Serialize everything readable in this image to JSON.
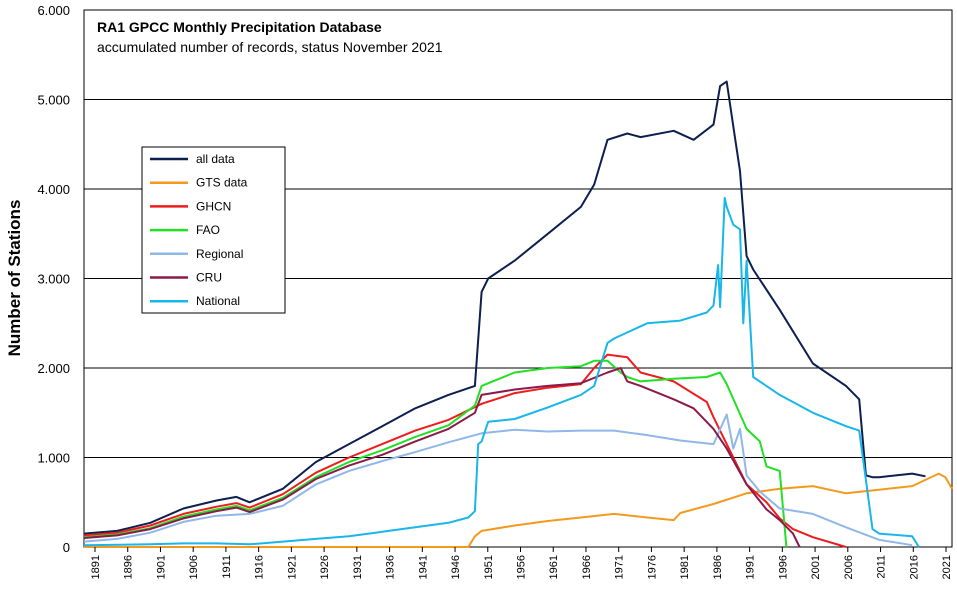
{
  "chart_data": {
    "type": "line",
    "title": "RA1  GPCC Monthly  Precipitation Database",
    "subtitle": "accumulated  number  of records,  status November  2021",
    "xlabel": "",
    "ylabel": "Number of Stations",
    "xlim": [
      1891,
      2022
    ],
    "ylim": [
      0,
      6000
    ],
    "y_ticks": [
      0,
      1000,
      2000,
      3000,
      4000,
      5000,
      6000
    ],
    "y_tick_labels": [
      "0",
      "1.000",
      "2.000",
      "3.000",
      "4.000",
      "5.000",
      "6.000"
    ],
    "x_tick_labels": [
      "1891",
      "1896",
      "1901",
      "1906",
      "1911",
      "1916",
      "1921",
      "1926",
      "1931",
      "1936",
      "1941",
      "1946",
      "1951",
      "1956",
      "1961",
      "1966",
      "1971",
      "1976",
      "1981",
      "1986",
      "1991",
      "1996",
      "2001",
      "2006",
      "2011",
      "2016",
      "2021"
    ],
    "grid": "horizontal",
    "legend_position": "upper-left",
    "series": [
      {
        "name": "all data",
        "color": "#0d1f4f",
        "x": [
          1891,
          1896,
          1901,
          1906,
          1911,
          1914,
          1916,
          1921,
          1926,
          1931,
          1936,
          1941,
          1946,
          1950,
          1951,
          1952,
          1956,
          1961,
          1966,
          1968,
          1970,
          1973,
          1975,
          1980,
          1983,
          1986,
          1987,
          1988,
          1989,
          1990,
          1991,
          1992,
          1996,
          2001,
          2006,
          2008,
          2009,
          2010,
          2011,
          2016,
          2018
        ],
        "values": [
          150,
          180,
          270,
          430,
          520,
          560,
          500,
          650,
          950,
          1150,
          1350,
          1550,
          1700,
          1800,
          2850,
          3000,
          3200,
          3500,
          3800,
          4050,
          4550,
          4620,
          4580,
          4650,
          4550,
          4720,
          5150,
          5200,
          4700,
          4200,
          3250,
          3100,
          2650,
          2050,
          1800,
          1650,
          800,
          780,
          780,
          820,
          790
        ]
      },
      {
        "name": "GTS data",
        "color": "#f39a1e",
        "x": [
          1891,
          1949,
          1950,
          1951,
          1956,
          1961,
          1966,
          1971,
          1976,
          1980,
          1981,
          1986,
          1991,
          1996,
          2001,
          2006,
          2011,
          2016,
          2020,
          2021,
          2022
        ],
        "values": [
          0,
          0,
          120,
          180,
          240,
          290,
          330,
          370,
          330,
          300,
          380,
          480,
          600,
          650,
          680,
          600,
          640,
          680,
          820,
          780,
          650
        ]
      },
      {
        "name": "GHCN",
        "color": "#ee1c1c",
        "x": [
          1891,
          1896,
          1901,
          1906,
          1911,
          1914,
          1916,
          1921,
          1926,
          1931,
          1936,
          1941,
          1946,
          1951,
          1956,
          1961,
          1966,
          1968,
          1970,
          1973,
          1975,
          1980,
          1985,
          1986,
          1988,
          1991,
          1994,
          1996,
          1998,
          2001,
          2006
        ],
        "values": [
          130,
          160,
          240,
          370,
          450,
          490,
          440,
          590,
          830,
          1000,
          1150,
          1300,
          1420,
          1600,
          1720,
          1780,
          1820,
          2000,
          2150,
          2120,
          1950,
          1850,
          1620,
          1450,
          1150,
          700,
          500,
          320,
          200,
          110,
          0
        ]
      },
      {
        "name": "FAO",
        "color": "#22e022",
        "x": [
          1891,
          1896,
          1901,
          1906,
          1911,
          1914,
          1916,
          1921,
          1926,
          1931,
          1936,
          1941,
          1946,
          1950,
          1951,
          1956,
          1961,
          1966,
          1968,
          1970,
          1972,
          1973,
          1975,
          1980,
          1985,
          1987,
          1988,
          1991,
          1993,
          1994,
          1996,
          1997
        ],
        "values": [
          110,
          140,
          210,
          340,
          420,
          460,
          410,
          550,
          780,
          950,
          1080,
          1230,
          1360,
          1580,
          1800,
          1950,
          2000,
          2020,
          2080,
          2080,
          1950,
          1900,
          1850,
          1880,
          1900,
          1950,
          1820,
          1320,
          1180,
          900,
          850,
          0
        ]
      },
      {
        "name": "Regional",
        "color": "#8fb8e8",
        "x": [
          1891,
          1896,
          1901,
          1906,
          1911,
          1916,
          1921,
          1926,
          1931,
          1936,
          1941,
          1946,
          1951,
          1956,
          1961,
          1966,
          1971,
          1976,
          1981,
          1986,
          1988,
          1989,
          1990,
          1991,
          1993,
          1996,
          2001,
          2006,
          2011,
          2016
        ],
        "values": [
          60,
          90,
          160,
          280,
          350,
          370,
          460,
          700,
          850,
          960,
          1060,
          1170,
          1270,
          1310,
          1290,
          1300,
          1300,
          1250,
          1190,
          1150,
          1480,
          1100,
          1320,
          800,
          620,
          430,
          370,
          220,
          80,
          20
        ]
      },
      {
        "name": "CRU",
        "color": "#8b1a4b",
        "x": [
          1891,
          1896,
          1901,
          1906,
          1911,
          1914,
          1916,
          1921,
          1926,
          1931,
          1936,
          1941,
          1946,
          1950,
          1951,
          1956,
          1961,
          1966,
          1970,
          1972,
          1973,
          1975,
          1980,
          1983,
          1986,
          1988,
          1991,
          1994,
          1996,
          1998,
          1999
        ],
        "values": [
          100,
          130,
          200,
          320,
          400,
          440,
          390,
          530,
          760,
          910,
          1030,
          1180,
          1320,
          1500,
          1700,
          1760,
          1800,
          1830,
          1950,
          2000,
          1850,
          1800,
          1650,
          1550,
          1320,
          1100,
          700,
          420,
          300,
          150,
          0
        ]
      },
      {
        "name": "National",
        "color": "#19b6e9",
        "x": [
          1891,
          1901,
          1906,
          1911,
          1916,
          1921,
          1926,
          1931,
          1936,
          1941,
          1946,
          1949,
          1950,
          1950.5,
          1951,
          1952,
          1956,
          1961,
          1966,
          1968,
          1970,
          1971,
          1976,
          1981,
          1985,
          1986,
          1986.7,
          1987,
          1987.7,
          1988,
          1989,
          1990,
          1990.5,
          1991,
          1992,
          1996,
          2001,
          2006,
          2008,
          2009,
          2010,
          2011,
          2016,
          2017
        ],
        "values": [
          20,
          30,
          40,
          40,
          30,
          60,
          90,
          120,
          170,
          220,
          270,
          330,
          400,
          1150,
          1180,
          1400,
          1430,
          1560,
          1700,
          1800,
          2280,
          2330,
          2500,
          2530,
          2620,
          2700,
          3150,
          2680,
          3900,
          3800,
          3600,
          3550,
          2500,
          3200,
          1900,
          1700,
          1500,
          1350,
          1300,
          750,
          200,
          150,
          120,
          0
        ]
      }
    ]
  }
}
